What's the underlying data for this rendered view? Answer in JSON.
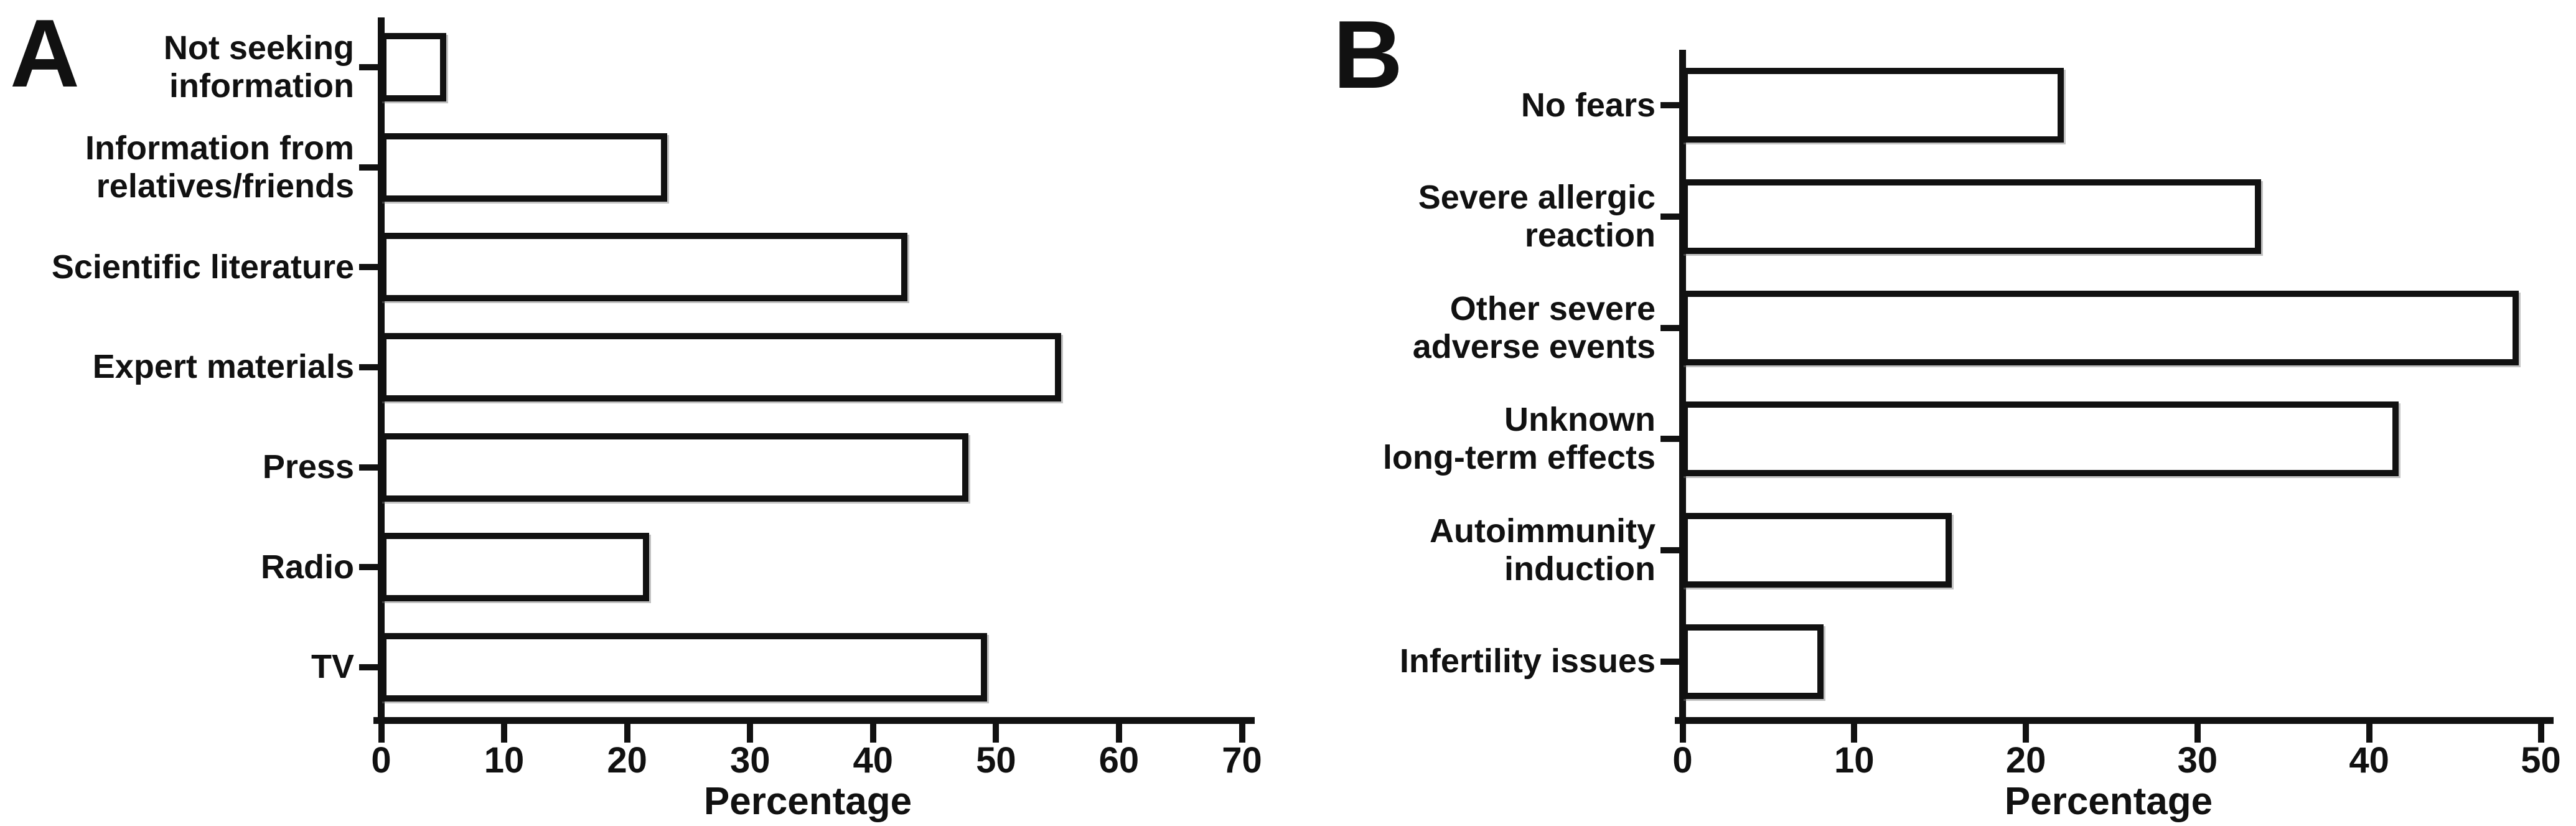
{
  "figure": {
    "background_color": "#ffffff",
    "ink_color": "#111111",
    "bar_fill_color": "#ffffff"
  },
  "chart_data": [
    {
      "type": "bar",
      "orientation": "horizontal",
      "panel_label": "A",
      "title": "",
      "categories": [
        "Not seeking\ninformation",
        "Information from\nrelatives/friends",
        "Scientific literature",
        "Expert materials",
        "Press",
        "Radio",
        "TV"
      ],
      "values": [
        5,
        23,
        42.5,
        55,
        47.5,
        21.5,
        49
      ],
      "xlabel": "Percentage",
      "ylabel": "",
      "xlim": [
        0,
        70
      ],
      "xticks": [
        0,
        10,
        20,
        30,
        40,
        50,
        60,
        70
      ],
      "grid": false,
      "legend": false
    },
    {
      "type": "bar",
      "orientation": "horizontal",
      "panel_label": "B",
      "title": "",
      "categories": [
        "No fears",
        "Severe allergic\nreaction",
        "Other severe\nadverse events",
        "Unknown\nlong-term effects",
        "Autoimmunity\ninduction",
        "Infertility issues"
      ],
      "values": [
        22,
        33.5,
        48.5,
        41.5,
        15.5,
        8
      ],
      "xlabel": "Percentage",
      "ylabel": "",
      "xlim": [
        0,
        50
      ],
      "xticks": [
        0,
        10,
        20,
        30,
        40,
        50
      ],
      "grid": false,
      "legend": false
    }
  ]
}
